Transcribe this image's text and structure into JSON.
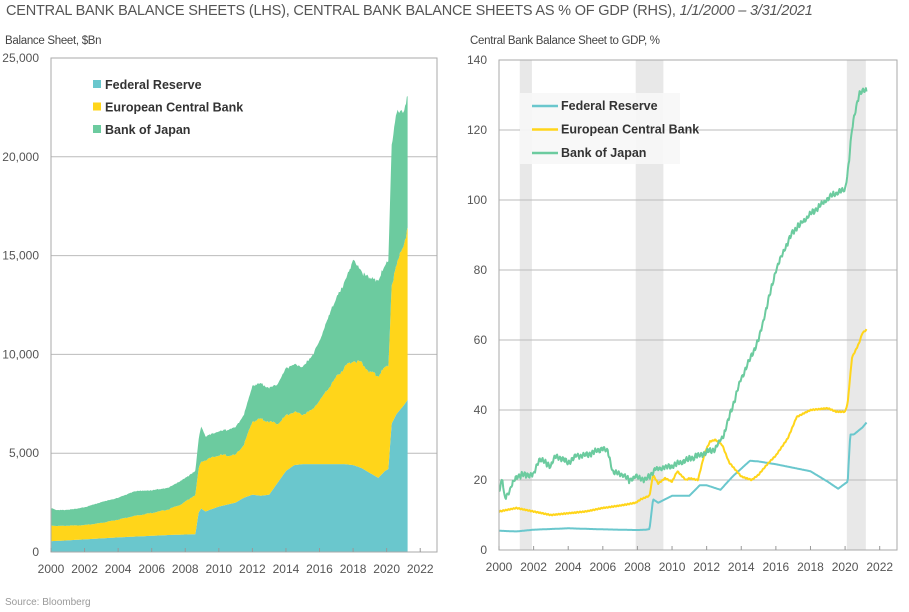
{
  "title": {
    "main": "CENTRAL BANK BALANCE SHEETS (LHS), CENTRAL BANK BALANCE SHEETS AS % OF GDP (RHS), ",
    "range": "1/1/2000 – 3/31/2021"
  },
  "source": "Source: Bloomberg",
  "colors": {
    "fed": "#6AC7CD",
    "ecb": "#FFD51A",
    "boj": "#6CCB9F",
    "recession": "#E8E8E8",
    "grid": "#BBBBBB"
  },
  "chart_data": [
    {
      "type": "area",
      "stacked": true,
      "ylabel": "Balance Sheet, $Bn",
      "xlabel": "",
      "xlim": [
        2000,
        2023
      ],
      "ylim": [
        0,
        25000
      ],
      "yticks": [
        "0",
        "5,000",
        "10,000",
        "15,000",
        "20,000",
        "25,000"
      ],
      "ytick_values": [
        0,
        5000,
        10000,
        15000,
        20000,
        25000
      ],
      "xticks": [
        "2000",
        "2002",
        "2004",
        "2006",
        "2008",
        "2010",
        "2012",
        "2014",
        "2016",
        "2018",
        "2020",
        "2022"
      ],
      "grid": true,
      "legend": "top-left",
      "x": [
        2000,
        2000.3,
        2001,
        2002,
        2003,
        2004,
        2005,
        2006,
        2007,
        2007.8,
        2008.6,
        2008.8,
        2008.95,
        2009.2,
        2010,
        2011,
        2011.5,
        2012,
        2012.5,
        2013,
        2013.5,
        2014,
        2014.5,
        2015,
        2015.5,
        2016,
        2016.5,
        2017,
        2017.5,
        2018,
        2018.5,
        2019,
        2019.5,
        2019.9,
        2020.1,
        2020.3,
        2020.6,
        2021,
        2021.25
      ],
      "series": [
        {
          "name": "Federal Reserve",
          "values": [
            550,
            560,
            590,
            640,
            690,
            740,
            780,
            820,
            860,
            880,
            900,
            2000,
            2200,
            2050,
            2300,
            2500,
            2750,
            2900,
            2850,
            2900,
            3500,
            4100,
            4400,
            4450,
            4450,
            4450,
            4450,
            4450,
            4450,
            4400,
            4250,
            4000,
            3750,
            4100,
            4200,
            6500,
            7000,
            7400,
            7700
          ]
        },
        {
          "name": "European Central Bank",
          "values": [
            800,
            760,
            740,
            720,
            780,
            900,
            1050,
            1150,
            1300,
            1550,
            2000,
            2200,
            2400,
            2600,
            2600,
            2400,
            2700,
            3700,
            3900,
            3700,
            3000,
            2800,
            2700,
            2500,
            2700,
            3200,
            3800,
            4400,
            4900,
            5300,
            5300,
            5100,
            5200,
            5200,
            5200,
            7000,
            7500,
            8200,
            8600
          ]
        },
        {
          "name": "Bank of Japan",
          "values": [
            900,
            800,
            800,
            900,
            1050,
            1100,
            1250,
            1150,
            1100,
            1200,
            1200,
            1500,
            1800,
            1200,
            1200,
            1400,
            1500,
            1800,
            1800,
            1700,
            2000,
            2400,
            2400,
            2400,
            2700,
            3000,
            3600,
            4000,
            4300,
            5100,
            4600,
            4800,
            4800,
            5200,
            5400,
            7000,
            7800,
            6700,
            6700
          ]
        }
      ]
    },
    {
      "type": "line",
      "ylabel": "Central Bank Balance Sheet to GDP, %",
      "xlabel": "",
      "xlim": [
        2000,
        2023
      ],
      "ylim": [
        0,
        140
      ],
      "yticks": [
        "0",
        "20",
        "40",
        "60",
        "80",
        "100",
        "120",
        "140"
      ],
      "ytick_values": [
        0,
        20,
        40,
        60,
        80,
        100,
        120,
        140
      ],
      "xticks": [
        "2000",
        "2002",
        "2004",
        "2006",
        "2008",
        "2010",
        "2012",
        "2014",
        "2016",
        "2018",
        "2020",
        "2022"
      ],
      "grid": true,
      "legend": "top-left",
      "recessions": [
        [
          2001.2,
          2001.9
        ],
        [
          2007.9,
          2009.5
        ],
        [
          2020.1,
          2021.2
        ]
      ],
      "series": [
        {
          "name": "Federal Reserve",
          "x": [
            2000,
            2001,
            2002,
            2004,
            2006,
            2008,
            2008.5,
            2008.7,
            2008.9,
            2009.2,
            2010,
            2011,
            2011.6,
            2012,
            2012.8,
            2013.5,
            2014.5,
            2015,
            2016,
            2017,
            2018,
            2019,
            2019.6,
            2020,
            2020.15,
            2020.3,
            2020.5,
            2021,
            2021.25
          ],
          "values": [
            5.5,
            5.3,
            5.8,
            6.2,
            5.9,
            5.7,
            5.8,
            6,
            14.5,
            13.5,
            15.5,
            15.5,
            18.5,
            18.5,
            17.2,
            21,
            25.5,
            25.3,
            24.5,
            23.5,
            22.5,
            19.5,
            17.5,
            19,
            19.5,
            33,
            33,
            35,
            36.5
          ]
        },
        {
          "name": "European Central Bank",
          "x": [
            2000,
            2001,
            2002,
            2003,
            2004,
            2005,
            2006,
            2007,
            2007.9,
            2008.2,
            2008.7,
            2008.9,
            2009.2,
            2009.6,
            2010,
            2010.3,
            2010.8,
            2011,
            2011.5,
            2011.9,
            2012.2,
            2012.5,
            2012.9,
            2013.3,
            2014,
            2014.6,
            2015,
            2015.5,
            2016,
            2016.7,
            2017.2,
            2018,
            2019,
            2019.5,
            2020,
            2020.15,
            2020.4,
            2020.8,
            2021,
            2021.25
          ],
          "values": [
            11,
            12,
            11,
            10,
            10.5,
            11,
            12,
            12.7,
            13.5,
            14.5,
            15.5,
            21.5,
            19,
            20.5,
            19.5,
            22.5,
            20,
            20.5,
            20,
            28,
            31,
            31.5,
            30,
            25,
            21,
            20,
            21.5,
            24.5,
            27,
            32,
            38,
            40,
            40.5,
            39.5,
            39.5,
            42,
            55,
            59,
            62,
            63
          ]
        },
        {
          "name": "Bank of Japan",
          "x": [
            2000,
            2000.2,
            2000.3,
            2000.5,
            2001,
            2001.5,
            2002,
            2002.3,
            2003,
            2003.3,
            2004,
            2004.5,
            2005,
            2005.5,
            2006,
            2006.3,
            2006.6,
            2007,
            2007.5,
            2008,
            2008.5,
            2009,
            2010,
            2011,
            2011.5,
            2012,
            2012.5,
            2013,
            2013.5,
            2014,
            2015,
            2015.5,
            2016,
            2016.5,
            2017,
            2017.5,
            2018,
            2018.5,
            2019,
            2019.5,
            2020,
            2020.2,
            2020.4,
            2020.6,
            2020.8,
            2021,
            2021.25
          ],
          "values": [
            17,
            20,
            15,
            16,
            21,
            21.5,
            21.5,
            26,
            24,
            27,
            25,
            27,
            27,
            28,
            29,
            28,
            22,
            22,
            20,
            21,
            20,
            23,
            24,
            26,
            27,
            28,
            29,
            33,
            41,
            49,
            60,
            70,
            80,
            86,
            91,
            93.5,
            96,
            98,
            100.5,
            102,
            103,
            110,
            120,
            126,
            130,
            131,
            131.5
          ]
        }
      ]
    }
  ]
}
